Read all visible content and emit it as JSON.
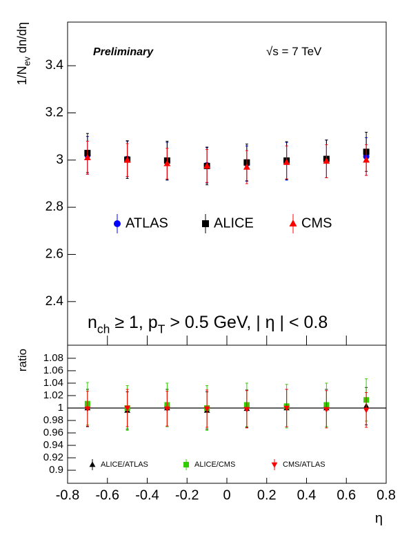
{
  "chart_data": [
    {
      "type": "scatter",
      "ylabel": [
        {
          "text": "1/N"
        },
        {
          "text": "ev",
          "sub": true
        },
        {
          "text": " dn/dη"
        }
      ],
      "annotations": [
        {
          "text": [
            {
              "text": "Preliminary"
            }
          ],
          "style": "bold-italic"
        },
        {
          "text": [
            {
              "text": "√s = 7 TeV"
            }
          ],
          "style": "normal"
        },
        {
          "text": [
            {
              "text": "n"
            },
            {
              "text": "ch",
              "sub": true
            },
            {
              "text": " ≥ 1, p"
            },
            {
              "text": "T",
              "sub": true
            },
            {
              "text": " > 0.5 GeV, | η | < 0.8"
            }
          ],
          "style": "large"
        }
      ],
      "x": [
        -0.7,
        -0.5,
        -0.3,
        -0.1,
        0.1,
        0.3,
        0.5,
        0.7
      ],
      "xlim": [
        -0.8,
        0.8
      ],
      "xticks": [
        -0.8,
        -0.6,
        -0.4,
        -0.2,
        0,
        0.2,
        0.4,
        0.6,
        0.8
      ],
      "ylim": [
        2.215,
        3.585
      ],
      "yticks": [
        2.4,
        2.6,
        2.8,
        3,
        3.2,
        3.4
      ],
      "series": [
        {
          "name": "ATLAS",
          "color": "#0000ff",
          "marker": "circle",
          "values": [
            3.02,
            3.005,
            2.995,
            2.978,
            2.985,
            2.995,
            3.005,
            3.015
          ],
          "errors": [
            0.08,
            0.075,
            0.08,
            0.075,
            0.075,
            0.08,
            0.08,
            0.08
          ]
        },
        {
          "name": "ALICE",
          "color": "#000000",
          "marker": "square",
          "values": [
            3.03,
            3.002,
            2.998,
            2.975,
            2.99,
            2.998,
            3.005,
            3.035
          ],
          "errors": [
            0.083,
            0.08,
            0.082,
            0.08,
            0.078,
            0.08,
            0.08,
            0.083
          ]
        },
        {
          "name": "CMS",
          "color": "#ff0000",
          "marker": "triangle-up",
          "values": [
            3.01,
            3.0,
            2.985,
            2.975,
            2.97,
            2.99,
            2.995,
            3.0
          ],
          "errors": [
            0.07,
            0.07,
            0.065,
            0.07,
            0.07,
            0.07,
            0.07,
            0.065
          ]
        }
      ]
    },
    {
      "type": "scatter",
      "ylabel": [
        {
          "text": "ratio"
        }
      ],
      "xlabel": [
        {
          "text": "η"
        }
      ],
      "x": [
        -0.7,
        -0.5,
        -0.3,
        -0.1,
        0.1,
        0.3,
        0.5,
        0.7
      ],
      "xlim": [
        -0.8,
        0.8
      ],
      "xticks": [
        -0.8,
        -0.6,
        -0.4,
        -0.2,
        0,
        0.2,
        0.4,
        0.6,
        0.8
      ],
      "ylim": [
        0.879,
        1.101
      ],
      "yticks": [
        0.9,
        0.92,
        0.94,
        0.96,
        0.98,
        1,
        1.02,
        1.04,
        1.06,
        1.08
      ],
      "reference_line": 1,
      "series": [
        {
          "name": "ALICE/ATLAS",
          "color": "#000000",
          "marker": "triangle-up",
          "values": [
            1.0,
            0.996,
            1.0,
            0.996,
            0.999,
            1.0,
            1.0,
            1.003
          ],
          "errors": [
            0.03,
            0.03,
            0.03,
            0.03,
            0.03,
            0.03,
            0.03,
            0.03
          ]
        },
        {
          "name": "ALICE/CMS",
          "color": "#33cc00",
          "marker": "square",
          "values": [
            1.007,
            1.0,
            1.005,
            1.0,
            1.005,
            1.003,
            1.005,
            1.013
          ],
          "errors": [
            0.034,
            0.036,
            0.035,
            0.036,
            0.035,
            0.035,
            0.035,
            0.034
          ]
        },
        {
          "name": "CMS/ATLAS",
          "color": "#ff0000",
          "marker": "triangle-down",
          "values": [
            0.999,
            1.0,
            0.999,
            0.999,
            0.998,
            1.0,
            0.998,
            0.997
          ],
          "errors": [
            0.028,
            0.03,
            0.028,
            0.03,
            0.03,
            0.03,
            0.03,
            0.028
          ]
        }
      ]
    }
  ]
}
